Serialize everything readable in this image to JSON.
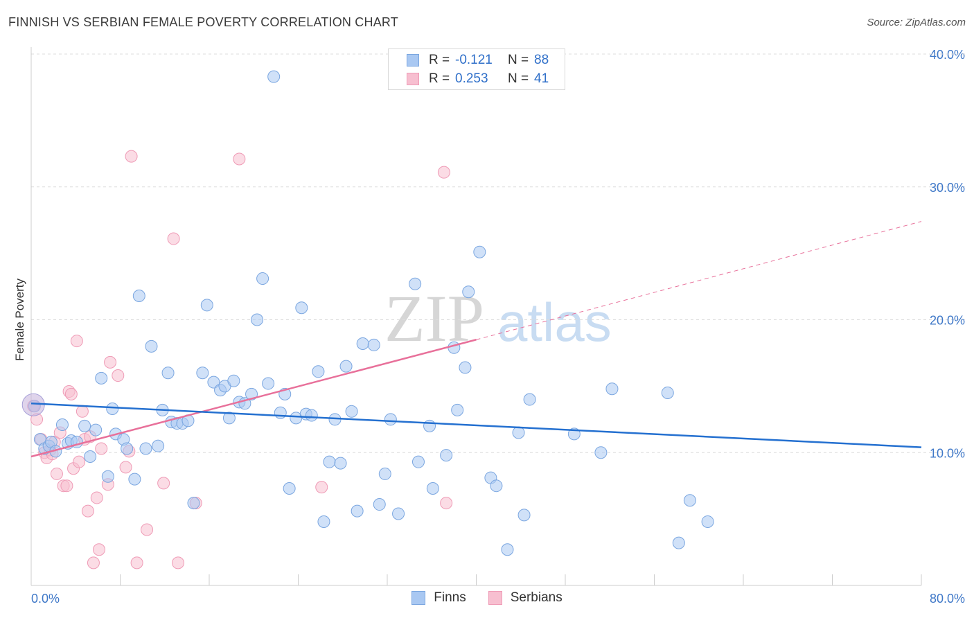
{
  "title": "FINNISH VS SERBIAN FEMALE POVERTY CORRELATION CHART",
  "source": "Source: ZipAtlas.com",
  "watermark": {
    "part1": "ZIP",
    "part2": "atlas"
  },
  "colors": {
    "finns_fill": "#a9c8f2",
    "finns_stroke": "#7aa6e0",
    "finns_line": "#2470d0",
    "serbians_fill": "#f7bfd0",
    "serbians_stroke": "#ef9bb6",
    "serbians_line": "#e8709a",
    "tick_label": "#3f78c8",
    "grid": "#dcdcdc"
  },
  "legend_top": {
    "rows": [
      {
        "series": "finns",
        "r_label": "R =",
        "r_value": "-0.121",
        "n_label": "N =",
        "n_value": "88"
      },
      {
        "series": "serbians",
        "r_label": "R =",
        "r_value": "0.253",
        "n_label": "N =",
        "n_value": "41"
      }
    ]
  },
  "legend_bottom": {
    "finns": "Finns",
    "serbians": "Serbians"
  },
  "chart_data": {
    "type": "scatter",
    "title": "FINNISH VS SERBIAN FEMALE POVERTY CORRELATION CHART",
    "xlabel": "",
    "ylabel": "Female Poverty",
    "xlim": [
      0,
      80
    ],
    "ylim": [
      0,
      40
    ],
    "x_tick_labels": [
      "0.0%",
      "80.0%"
    ],
    "y_tick_labels": [
      "10.0%",
      "20.0%",
      "30.0%",
      "40.0%"
    ],
    "y_ticks": [
      10,
      20,
      30,
      40
    ],
    "grid": "horizontal dashed",
    "legend_placement": "top-center and bottom",
    "series": [
      {
        "name": "Finns",
        "r": -0.121,
        "n": 88,
        "trend": {
          "x": [
            0,
            80
          ],
          "y": [
            13.7,
            10.4
          ]
        },
        "points": [
          [
            0.3,
            13.5
          ],
          [
            0.8,
            11.0
          ],
          [
            1.2,
            10.3
          ],
          [
            1.6,
            10.5
          ],
          [
            1.8,
            10.8
          ],
          [
            2.2,
            10.1
          ],
          [
            2.8,
            12.1
          ],
          [
            3.3,
            10.7
          ],
          [
            3.6,
            10.9
          ],
          [
            4.1,
            10.8
          ],
          [
            4.8,
            12.0
          ],
          [
            5.3,
            9.7
          ],
          [
            5.8,
            11.7
          ],
          [
            6.3,
            15.6
          ],
          [
            6.9,
            8.2
          ],
          [
            7.3,
            13.3
          ],
          [
            7.6,
            11.4
          ],
          [
            8.3,
            11.0
          ],
          [
            8.6,
            10.3
          ],
          [
            9.3,
            8.0
          ],
          [
            9.7,
            21.8
          ],
          [
            10.3,
            10.3
          ],
          [
            10.8,
            18.0
          ],
          [
            11.4,
            10.5
          ],
          [
            11.8,
            13.2
          ],
          [
            12.3,
            16.0
          ],
          [
            12.6,
            12.3
          ],
          [
            13.1,
            12.2
          ],
          [
            13.6,
            12.2
          ],
          [
            14.1,
            12.4
          ],
          [
            14.6,
            6.2
          ],
          [
            15.4,
            16.0
          ],
          [
            15.8,
            21.1
          ],
          [
            16.4,
            15.3
          ],
          [
            17.0,
            14.7
          ],
          [
            17.4,
            15.0
          ],
          [
            17.8,
            12.6
          ],
          [
            18.2,
            15.4
          ],
          [
            18.7,
            13.8
          ],
          [
            19.2,
            13.7
          ],
          [
            19.8,
            14.4
          ],
          [
            20.3,
            20.0
          ],
          [
            20.8,
            23.1
          ],
          [
            21.3,
            15.2
          ],
          [
            21.8,
            38.3
          ],
          [
            22.4,
            13.0
          ],
          [
            22.8,
            14.4
          ],
          [
            23.2,
            7.3
          ],
          [
            23.8,
            12.6
          ],
          [
            24.3,
            20.9
          ],
          [
            24.7,
            12.9
          ],
          [
            25.2,
            12.8
          ],
          [
            25.8,
            16.1
          ],
          [
            26.3,
            4.8
          ],
          [
            26.8,
            9.3
          ],
          [
            27.3,
            12.5
          ],
          [
            27.8,
            9.2
          ],
          [
            28.3,
            16.5
          ],
          [
            28.8,
            13.1
          ],
          [
            29.3,
            5.6
          ],
          [
            29.8,
            18.2
          ],
          [
            30.8,
            18.1
          ],
          [
            31.3,
            6.1
          ],
          [
            31.8,
            8.4
          ],
          [
            32.3,
            12.5
          ],
          [
            33.0,
            5.4
          ],
          [
            34.5,
            22.7
          ],
          [
            34.8,
            9.3
          ],
          [
            35.8,
            12.0
          ],
          [
            36.1,
            7.3
          ],
          [
            37.3,
            9.8
          ],
          [
            38.3,
            13.2
          ],
          [
            38.0,
            17.9
          ],
          [
            39.0,
            16.4
          ],
          [
            39.3,
            22.1
          ],
          [
            40.3,
            25.1
          ],
          [
            41.3,
            8.1
          ],
          [
            41.8,
            7.5
          ],
          [
            42.8,
            2.7
          ],
          [
            43.8,
            11.5
          ],
          [
            44.3,
            5.3
          ],
          [
            44.8,
            14.0
          ],
          [
            48.8,
            11.4
          ],
          [
            51.2,
            10.0
          ],
          [
            52.2,
            14.8
          ],
          [
            57.2,
            14.5
          ],
          [
            59.2,
            6.4
          ],
          [
            58.2,
            3.2
          ],
          [
            60.8,
            4.8
          ]
        ]
      },
      {
        "name": "Serbians",
        "r": 0.253,
        "n": 41,
        "trend": {
          "x": [
            0,
            40
          ],
          "y": [
            9.7,
            18.5
          ]
        },
        "trend_dashed": {
          "x": [
            40,
            80
          ],
          "y": [
            18.5,
            27.4
          ]
        },
        "points": [
          [
            0.2,
            13.5
          ],
          [
            0.5,
            12.5
          ],
          [
            0.9,
            11.0
          ],
          [
            1.2,
            10.0
          ],
          [
            1.4,
            9.6
          ],
          [
            1.7,
            10.2
          ],
          [
            1.9,
            9.9
          ],
          [
            2.1,
            10.8
          ],
          [
            2.3,
            8.4
          ],
          [
            2.6,
            11.5
          ],
          [
            2.9,
            7.5
          ],
          [
            3.2,
            7.5
          ],
          [
            3.4,
            14.6
          ],
          [
            3.6,
            14.4
          ],
          [
            3.8,
            8.8
          ],
          [
            4.1,
            18.4
          ],
          [
            4.3,
            9.3
          ],
          [
            4.6,
            13.1
          ],
          [
            4.8,
            11.0
          ],
          [
            5.1,
            5.6
          ],
          [
            5.3,
            11.2
          ],
          [
            5.6,
            1.7
          ],
          [
            5.9,
            6.6
          ],
          [
            6.1,
            2.7
          ],
          [
            6.3,
            10.3
          ],
          [
            6.9,
            7.6
          ],
          [
            7.1,
            16.8
          ],
          [
            7.8,
            15.8
          ],
          [
            8.5,
            8.9
          ],
          [
            8.8,
            10.1
          ],
          [
            9.0,
            32.3
          ],
          [
            9.5,
            1.7
          ],
          [
            10.4,
            4.2
          ],
          [
            11.9,
            7.7
          ],
          [
            12.8,
            26.1
          ],
          [
            13.2,
            1.7
          ],
          [
            14.8,
            6.2
          ],
          [
            18.7,
            32.1
          ],
          [
            26.1,
            7.4
          ],
          [
            37.1,
            31.1
          ],
          [
            37.3,
            6.2
          ]
        ]
      }
    ]
  }
}
